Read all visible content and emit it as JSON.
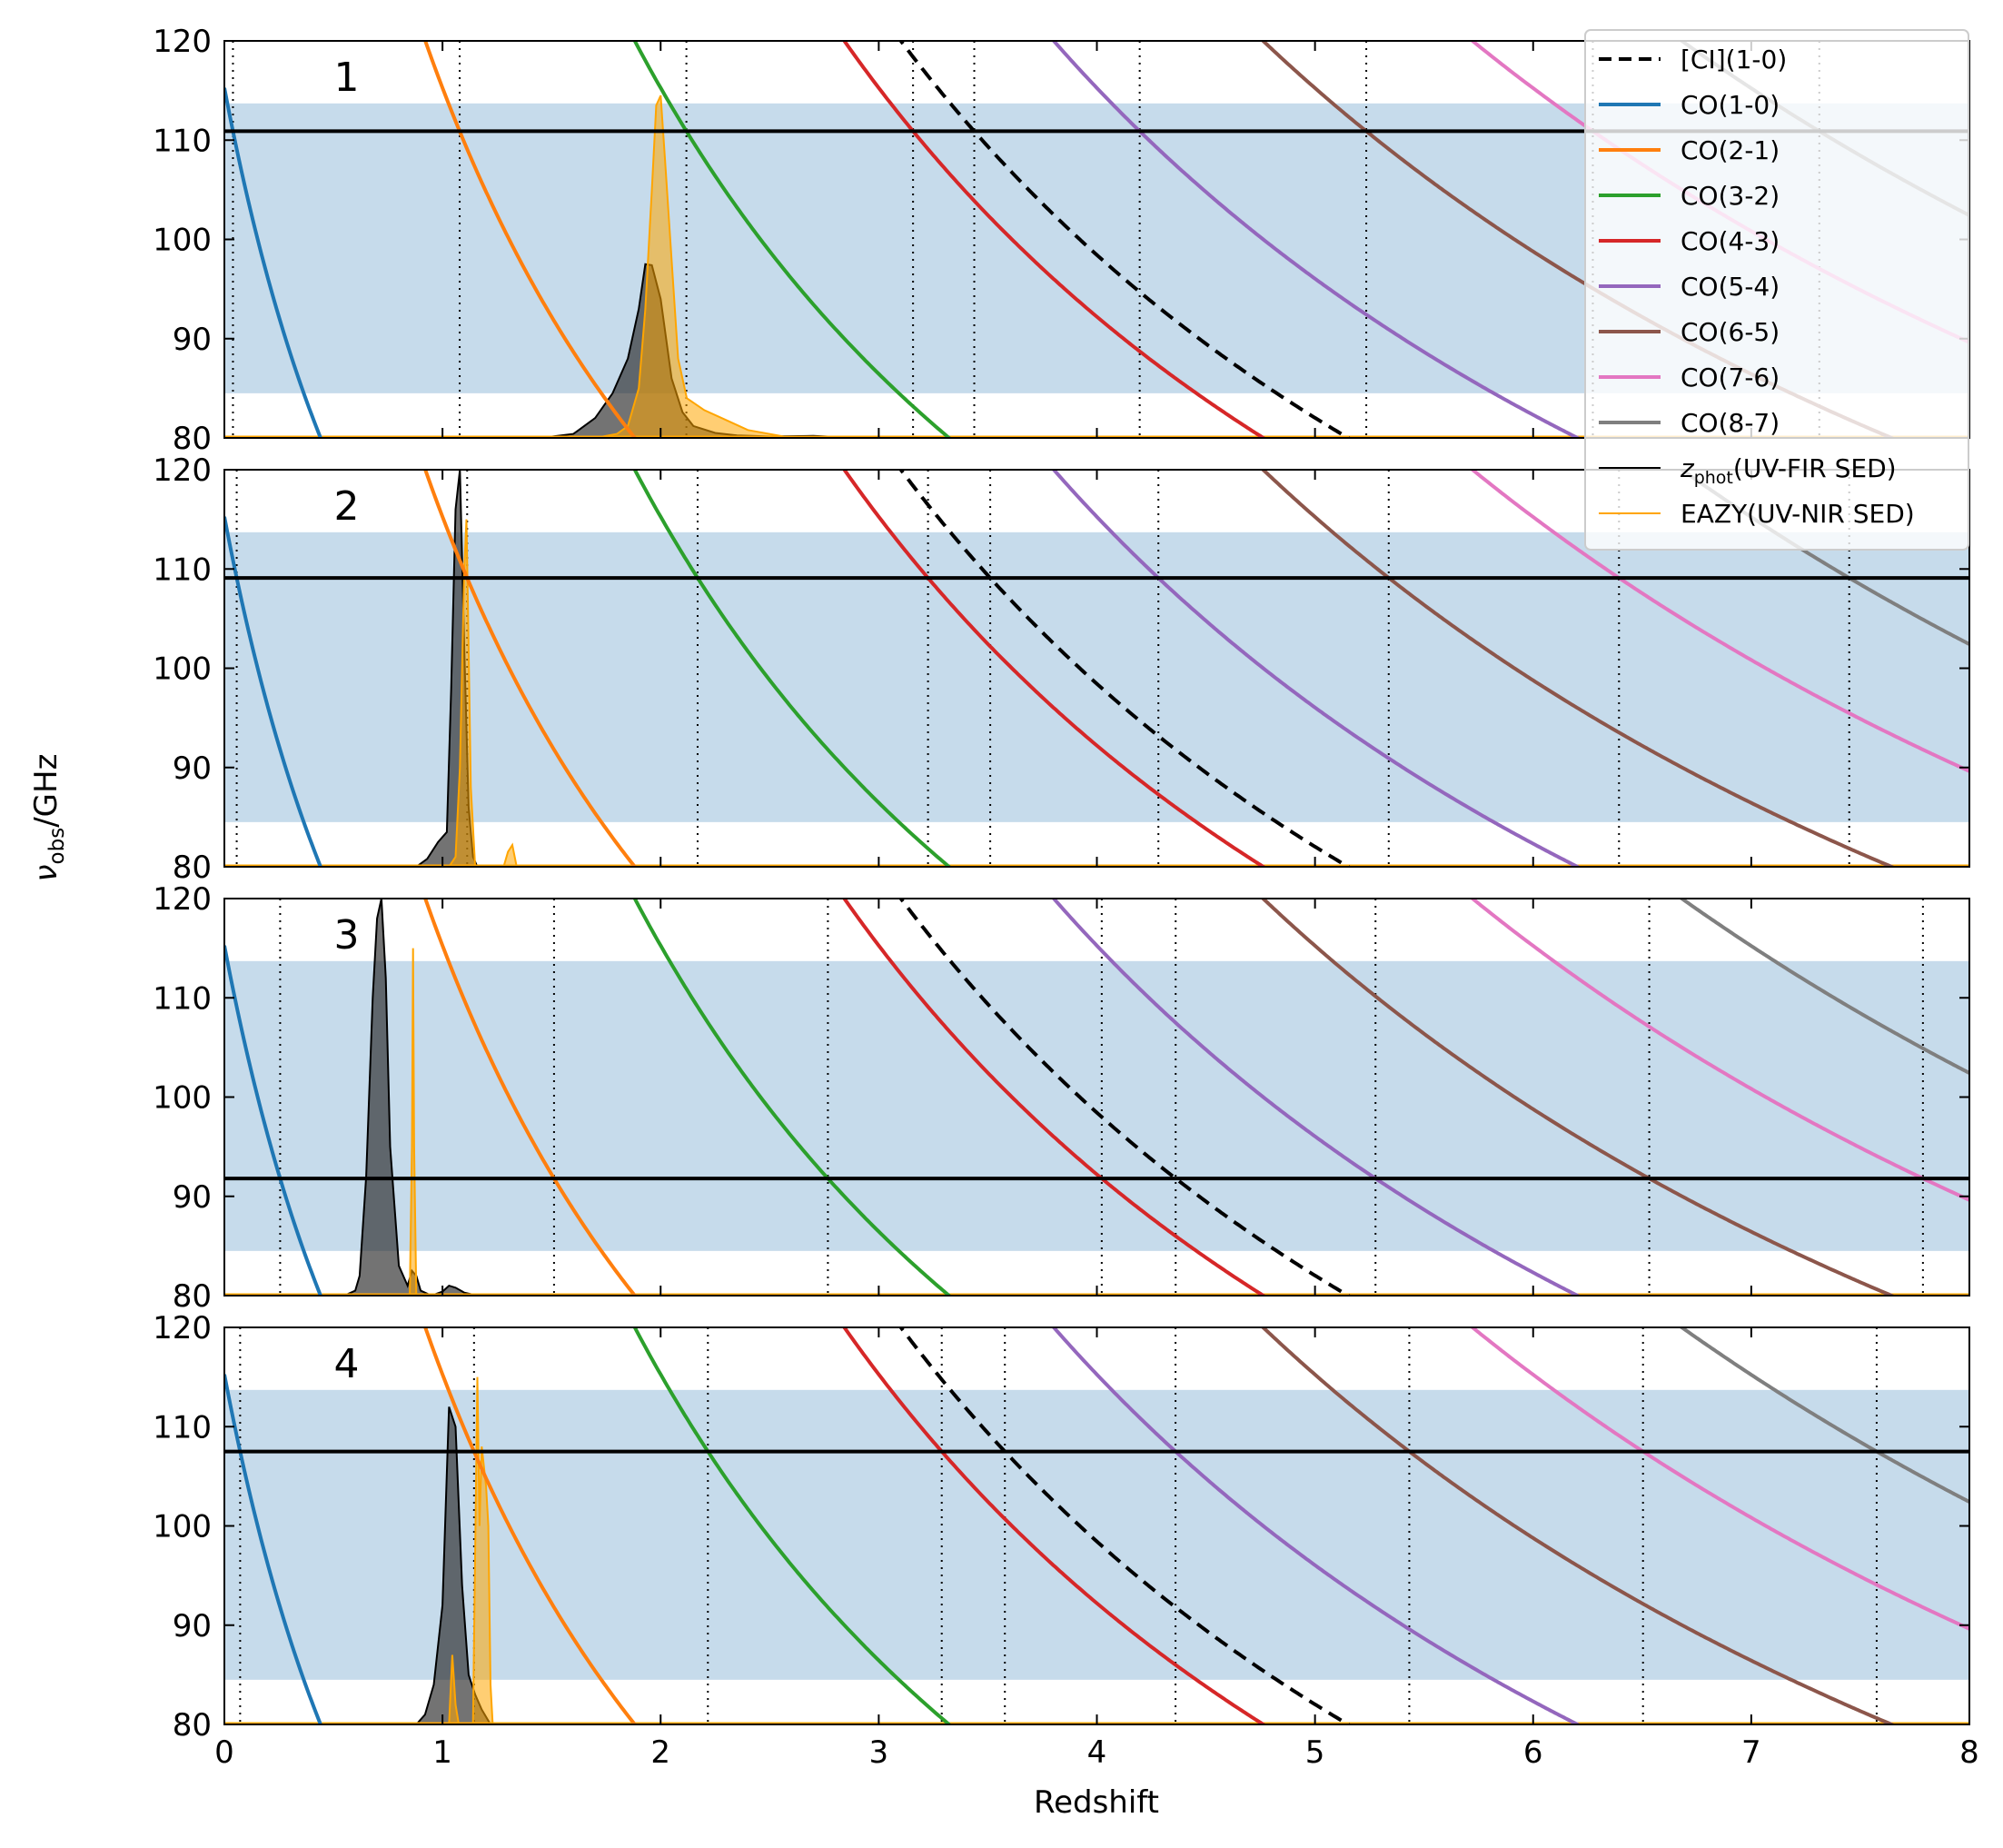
{
  "chart_data": {
    "type": "line",
    "xlabel": "Redshift",
    "ylabel": "ν_obs/GHz",
    "ylabel_main": "ν",
    "ylabel_sub": "obs",
    "ylabel_tail": "/GHz",
    "xlim": [
      0,
      8
    ],
    "ylim": [
      80,
      120
    ],
    "x_ticks": [
      "0",
      "1",
      "2",
      "3",
      "4",
      "5",
      "6",
      "7",
      "8"
    ],
    "y_ticks": [
      "80",
      "90",
      "100",
      "110",
      "120"
    ],
    "band_range_ghz": [
      84.5,
      113.7
    ],
    "lines": [
      {
        "name": "[CI](1-0)",
        "rest_ghz": 492.16,
        "color": "#000000",
        "dash": true
      },
      {
        "name": "CO(1-0)",
        "rest_ghz": 115.27,
        "color": "#1f77b4"
      },
      {
        "name": "CO(2-1)",
        "rest_ghz": 230.54,
        "color": "#ff7f0e"
      },
      {
        "name": "CO(3-2)",
        "rest_ghz": 345.8,
        "color": "#2ca02c"
      },
      {
        "name": "CO(4-3)",
        "rest_ghz": 461.04,
        "color": "#d62728"
      },
      {
        "name": "CO(5-4)",
        "rest_ghz": 576.27,
        "color": "#9467bd"
      },
      {
        "name": "CO(6-5)",
        "rest_ghz": 691.47,
        "color": "#8c564b"
      },
      {
        "name": "CO(7-6)",
        "rest_ghz": 806.65,
        "color": "#e377c2"
      },
      {
        "name": "CO(8-7)",
        "rest_ghz": 921.8,
        "color": "#7f7f7f"
      }
    ],
    "pdf_legend": [
      {
        "main": "z",
        "sub": "phot",
        "tail": "(UV-FIR SED)",
        "color": "#000000"
      },
      {
        "main": "EAZY(UV-NIR SED)",
        "sub": "",
        "tail": "",
        "color": "#ffa500"
      }
    ],
    "panels": [
      {
        "label": "1",
        "obs_freq_ghz": 110.9,
        "zphot_pdf": {
          "x": [
            1.45,
            1.6,
            1.7,
            1.78,
            1.85,
            1.9,
            1.93,
            1.96,
            2.0,
            2.05,
            2.1,
            2.15,
            2.25,
            2.35,
            2.5,
            2.7,
            2.9
          ],
          "y": [
            0,
            0.4,
            2.0,
            4.5,
            8,
            13,
            17.5,
            17.4,
            14,
            6,
            2.6,
            1.2,
            0.5,
            0.25,
            0.15,
            0.2,
            0
          ]
        },
        "eazy_pdf": {
          "x": [
            1.7,
            1.8,
            1.85,
            1.9,
            1.93,
            1.96,
            1.98,
            2.0,
            2.02,
            2.05,
            2.08,
            2.12,
            2.2,
            2.3,
            2.4,
            2.6
          ],
          "y": [
            0,
            0.4,
            1.2,
            5,
            13,
            25,
            33.5,
            34.5,
            28,
            18,
            8,
            4,
            2.8,
            1.8,
            0.8,
            0
          ]
        }
      },
      {
        "label": "2",
        "obs_freq_ghz": 109.1,
        "zphot_pdf": {
          "x": [
            0.88,
            0.93,
            0.98,
            1.02,
            1.04,
            1.06,
            1.08,
            1.1,
            1.12,
            1.14,
            1.16
          ],
          "y": [
            0,
            0.8,
            2.5,
            3.5,
            18,
            36,
            40,
            22,
            6,
            1,
            0
          ]
        },
        "eazy_pdf": {
          "x": [
            1.03,
            1.06,
            1.08,
            1.1,
            1.11,
            1.12,
            1.13,
            1.15,
            1.28,
            1.3,
            1.32,
            1.34
          ],
          "y": [
            0,
            1,
            10,
            30,
            35,
            22,
            8,
            0,
            0,
            1.5,
            2.2,
            0
          ]
        }
      },
      {
        "label": "3",
        "obs_freq_ghz": 91.8,
        "zphot_pdf": {
          "x": [
            0.55,
            0.6,
            0.62,
            0.65,
            0.68,
            0.7,
            0.72,
            0.74,
            0.76,
            0.8,
            0.84,
            0.86,
            0.88,
            0.9,
            0.95,
            1.0,
            1.03,
            1.06,
            1.1,
            1.16
          ],
          "y": [
            0,
            0.5,
            2,
            12,
            30,
            38,
            40,
            32,
            15,
            3,
            1,
            2.5,
            2,
            0.5,
            0,
            0.4,
            1,
            0.8,
            0.3,
            0
          ]
        },
        "eazy_pdf": {
          "x": [
            0.85,
            0.86,
            0.865,
            0.87,
            0.88
          ],
          "y": [
            0,
            15,
            35,
            15,
            0
          ]
        }
      },
      {
        "label": "4",
        "obs_freq_ghz": 107.5,
        "zphot_pdf": {
          "x": [
            0.88,
            0.92,
            0.96,
            1.0,
            1.03,
            1.06,
            1.09,
            1.12,
            1.15,
            1.18,
            1.22
          ],
          "y": [
            0,
            1,
            4,
            12,
            32,
            30,
            14,
            5,
            3,
            1.5,
            0
          ]
        },
        "eazy_pdf": {
          "x": [
            1.03,
            1.045,
            1.06,
            1.075,
            1.09,
            1.14,
            1.16,
            1.17,
            1.18,
            1.2,
            1.21,
            1.22,
            1.23
          ],
          "y": [
            0,
            7,
            2,
            0,
            0,
            0,
            35,
            20,
            28,
            24,
            20,
            4,
            0
          ]
        }
      }
    ]
  }
}
